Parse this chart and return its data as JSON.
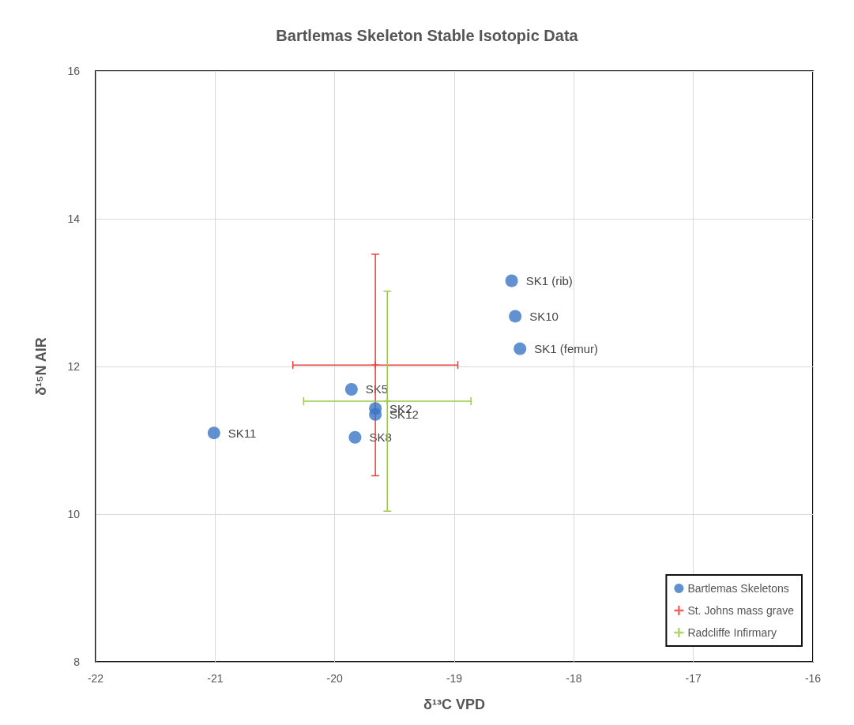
{
  "chart_data": {
    "type": "scatter",
    "title": "Bartlemas Skeleton Stable Isotopic Data",
    "xlabel": "δ¹³C VPD",
    "ylabel": "δ¹⁵N AIR",
    "xlim": [
      -22,
      -16
    ],
    "xticks": [
      -22,
      -21,
      -20,
      -19,
      -18,
      -17,
      -16
    ],
    "ylim": [
      8,
      16
    ],
    "yticks": [
      8,
      10,
      12,
      14,
      16
    ],
    "grid": true,
    "legend": "bottom right",
    "series": [
      {
        "name": "Bartlemas Skeletons",
        "color": "#3a75c4",
        "marker": "circle",
        "x": [
          -18.52,
          -18.49,
          -18.45,
          -19.86,
          -19.66,
          -19.66,
          -19.83,
          -21.01
        ],
        "values": [
          13.16,
          12.68,
          12.24,
          11.69,
          11.43,
          11.35,
          11.04,
          11.1
        ]
      },
      {
        "name": "St. Johns mass grave",
        "color": "#e8403a",
        "marker": "cross",
        "x": [
          -19.66
        ],
        "values": [
          12.02
        ],
        "errors": [
          1.5
        ],
        "xerrors": [
          0.69
        ]
      },
      {
        "name": "Radcliffe Infirmary",
        "color": "#9cc94a",
        "marker": "cross",
        "x": [
          -19.56
        ],
        "values": [
          11.53
        ],
        "errors": [
          1.49
        ],
        "xerrors": [
          0.7
        ]
      }
    ],
    "annotations": [
      {
        "text": "SK1 (rib)",
        "x": -18.52,
        "y": 13.16
      },
      {
        "text": "SK10",
        "x": -18.49,
        "y": 12.68
      },
      {
        "text": "SK1 (femur)",
        "x": -18.45,
        "y": 12.24
      },
      {
        "text": "SK5",
        "x": -19.86,
        "y": 11.69
      },
      {
        "text": "SK2",
        "x": -19.66,
        "y": 11.43
      },
      {
        "text": "SK12",
        "x": -19.66,
        "y": 11.35
      },
      {
        "text": "SK8",
        "x": -19.83,
        "y": 11.04
      },
      {
        "text": "SK11",
        "x": -21.01,
        "y": 11.1
      }
    ]
  }
}
